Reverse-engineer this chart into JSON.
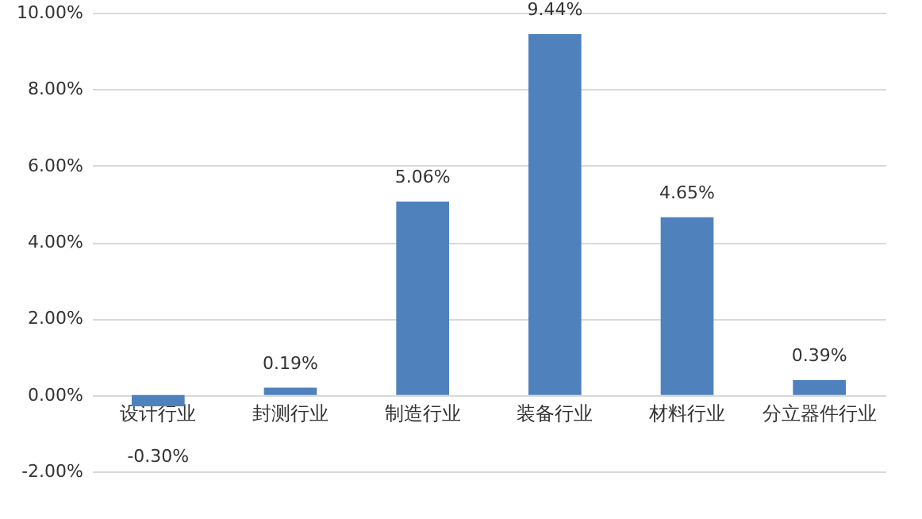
{
  "chart_data": {
    "type": "bar",
    "categories": [
      "设计行业",
      "封测行业",
      "制造行业",
      "装备行业",
      "材料行业",
      "分立器件行业"
    ],
    "values": [
      -0.3,
      0.19,
      5.06,
      9.44,
      4.65,
      0.39
    ],
    "value_labels": [
      "-0.30%",
      "0.19%",
      "5.06%",
      "9.44%",
      "4.65%",
      "0.39%"
    ],
    "color": "#4f81bd",
    "ylim": [
      -2,
      10
    ],
    "yticks": [
      {
        "value": -2,
        "label": "-2.00%"
      },
      {
        "value": 0,
        "label": "0.00%"
      },
      {
        "value": 2,
        "label": "2.00%"
      },
      {
        "value": 4,
        "label": "4.00%"
      },
      {
        "value": 6,
        "label": "6.00%"
      },
      {
        "value": 8,
        "label": "8.00%"
      },
      {
        "value": 10,
        "label": "10.00%"
      }
    ],
    "grid": true
  }
}
